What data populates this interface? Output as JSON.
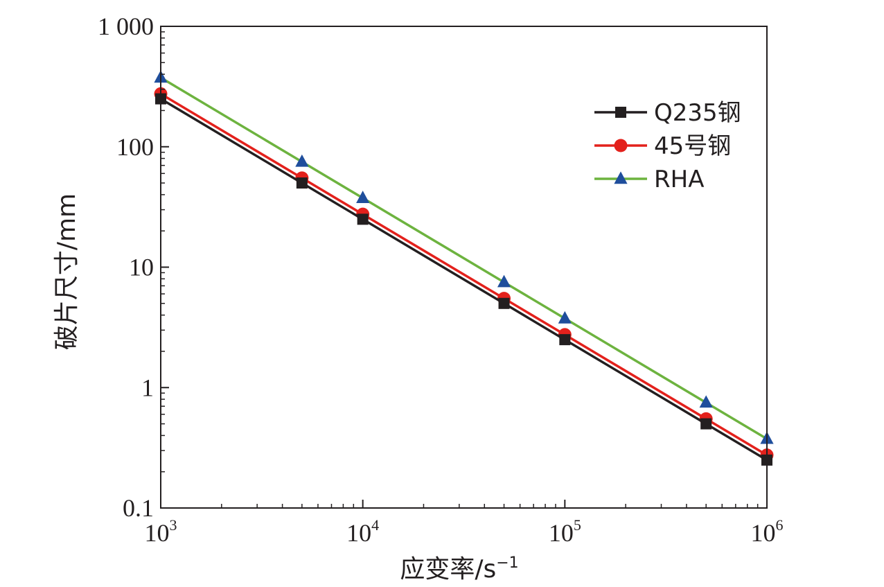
{
  "chart_data": {
    "type": "line",
    "x_scale": "log",
    "y_scale": "log",
    "xlim": [
      1000,
      1000000
    ],
    "ylim": [
      0.1,
      1000
    ],
    "xlabel": "应变率/s",
    "xlabel_superscript": "−1",
    "ylabel": "破片尺寸/mm",
    "x_ticks": [
      {
        "value": 1000,
        "base": "10",
        "exp": "3"
      },
      {
        "value": 10000,
        "base": "10",
        "exp": "4"
      },
      {
        "value": 100000,
        "base": "10",
        "exp": "5"
      },
      {
        "value": 1000000,
        "base": "10",
        "exp": "6"
      }
    ],
    "y_ticks": [
      {
        "value": 0.1,
        "label": "0.1"
      },
      {
        "value": 1,
        "label": "1"
      },
      {
        "value": 10,
        "label": "10"
      },
      {
        "value": 100,
        "label": "100"
      },
      {
        "value": 1000,
        "label": "1 000"
      }
    ],
    "grid": false,
    "legend_position": "top-right",
    "x": [
      1000,
      5000,
      10000,
      50000,
      100000,
      500000,
      1000000
    ],
    "series": [
      {
        "name": "Q235钢",
        "color": "#231f20",
        "marker": "square",
        "values": [
          250,
          50,
          25,
          5,
          2.5,
          0.5,
          0.25
        ]
      },
      {
        "name": "45号钢",
        "color": "#e3211c",
        "marker": "circle",
        "values": [
          275,
          55,
          27.5,
          5.5,
          2.75,
          0.55,
          0.275
        ]
      },
      {
        "name": "RHA",
        "color": "#6db33f",
        "marker_color": "#1f4e9c",
        "marker": "triangle",
        "values": [
          375,
          75,
          37.5,
          7.5,
          3.75,
          0.75,
          0.375
        ]
      }
    ]
  }
}
